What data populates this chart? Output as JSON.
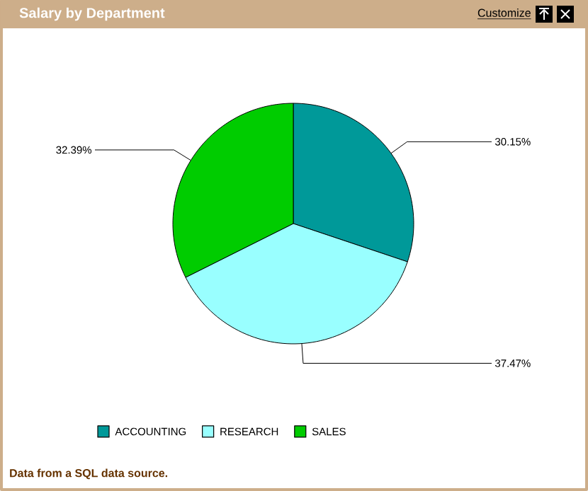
{
  "chart_data": {
    "type": "pie",
    "title": "Salary by Department",
    "categories": [
      "ACCOUNTING",
      "RESEARCH",
      "SALES"
    ],
    "values": [
      30.15,
      37.47,
      32.39
    ],
    "value_labels": [
      "30.15%",
      "37.47%",
      "32.39%"
    ],
    "colors": [
      "#009999",
      "#99ffff",
      "#00cc00"
    ],
    "legend": "bottom",
    "annotations": [
      "Customize",
      "Data from a SQL data source."
    ]
  }
}
